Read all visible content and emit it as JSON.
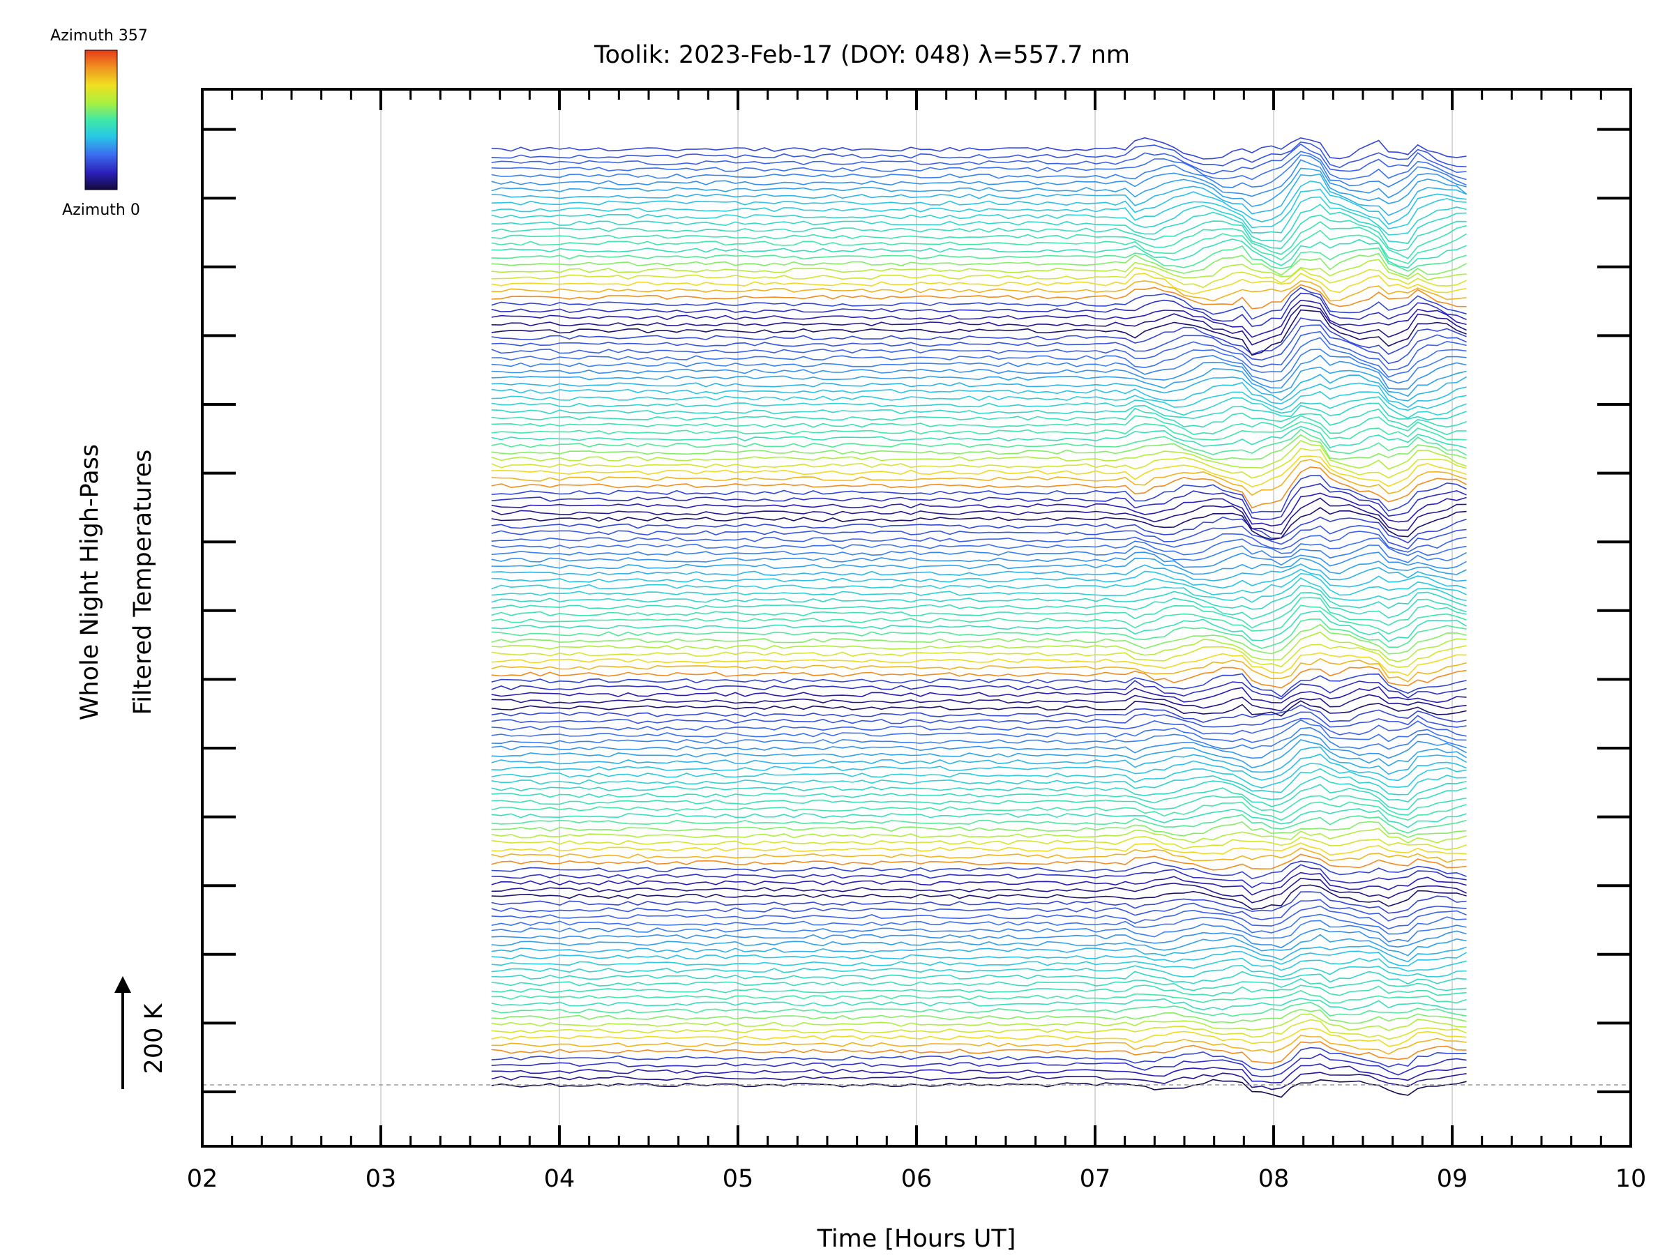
{
  "chart_data": {
    "type": "line",
    "title": "Toolik: 2023-Feb-17 (DOY: 048) λ=557.7 nm",
    "xlabel": "Time [Hours UT]",
    "ylabel_line1": "Whole Night High-Pass",
    "ylabel_line2": "Filtered Temperatures",
    "xlim": [
      2,
      10
    ],
    "x_ticks": [
      "02",
      "03",
      "04",
      "05",
      "06",
      "07",
      "08",
      "09",
      "10"
    ],
    "x_tick_values": [
      2,
      3,
      4,
      5,
      6,
      7,
      8,
      9,
      10
    ],
    "scale_bar_label": "200 K",
    "colorbar": {
      "top_label": "Azimuth 357",
      "bottom_label": "Azimuth 0",
      "colormap": [
        "#140a3c",
        "#2a1fb8",
        "#3c6cf0",
        "#28c8e6",
        "#40e8a8",
        "#a8f040",
        "#f0e020",
        "#f09020",
        "#e83a1a"
      ]
    },
    "data_span_hours": [
      3.62,
      9.08
    ],
    "trace_count": 140,
    "grid": "vertical lines at each hour",
    "baseline": "dashed line at lowest trace",
    "colors": {
      "axis": "#000000",
      "grid": "#d8d8d8"
    }
  }
}
